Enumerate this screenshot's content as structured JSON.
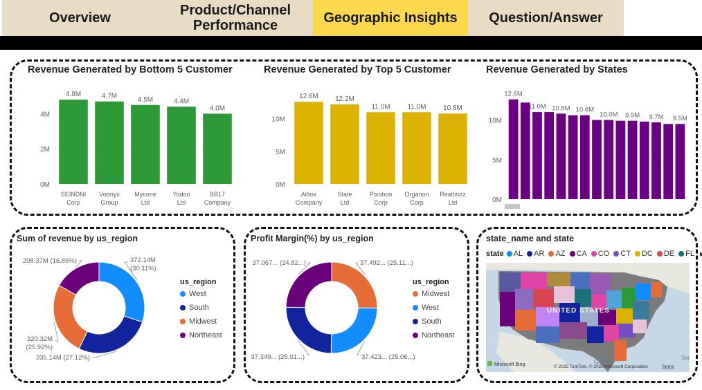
{
  "tabs": [
    {
      "label": "Overview",
      "active": false
    },
    {
      "label": "Product/Channel Performance",
      "active": false
    },
    {
      "label": "Geographic Insights",
      "active": true
    },
    {
      "label": "Question/Answer",
      "active": false
    }
  ],
  "chart_data": [
    {
      "type": "bar",
      "title": "Revenue Generated by Bottom 5 Customer",
      "categories": [
        "SEINDNI Corp",
        "Voonyx Group",
        "Mycone Ltd",
        "Yodoo Ltd",
        "BB17 Company"
      ],
      "values": [
        4.8,
        4.7,
        4.5,
        4.4,
        4.0
      ],
      "data_labels": [
        "4.8M",
        "4.7M",
        "4.5M",
        "4.4M",
        "4.0M"
      ],
      "yticks": [
        "0M",
        "2M",
        "4M"
      ],
      "ylim": [
        0,
        5.2
      ],
      "color": "#2e9a37"
    },
    {
      "type": "bar",
      "title": "Revenue Generated by Top 5 Customer",
      "categories": [
        "Aibox Company",
        "State Ltd",
        "Pixoboo Corp",
        "Organon Corp",
        "Realbuzz Ltd"
      ],
      "values": [
        12.6,
        12.2,
        11.0,
        11.0,
        10.8
      ],
      "data_labels": [
        "12.6M",
        "12.2M",
        "11.0M",
        "11.0M",
        "10.8M"
      ],
      "yticks": [
        "0M",
        "5M",
        "10M"
      ],
      "ylim": [
        0,
        14
      ],
      "color": "#dbb300"
    },
    {
      "type": "bar",
      "title": "Revenue Generated by States",
      "values": [
        12.6,
        12.2,
        11.0,
        11.0,
        10.8,
        10.6,
        10.6,
        10.0,
        10.0,
        9.9,
        9.9,
        9.8,
        9.7,
        9.5,
        9.5
      ],
      "data_labels": [
        "12.6M",
        "",
        "11.0M",
        "",
        "10.8M",
        "",
        "10.6M",
        "",
        "10.0M",
        "",
        "9.9M",
        "",
        "9.7M",
        "",
        "9.5M"
      ],
      "yticks": [
        "0M",
        "5M",
        "10M"
      ],
      "ylim": [
        0,
        13.8
      ],
      "color": "#6b0085"
    },
    {
      "type": "pie",
      "title": "Sum of revenue by us_region",
      "legend_title": "us_region",
      "series": [
        {
          "name": "West",
          "value": 30.11,
          "label": "372.14M\n(30.11%)",
          "color": "#118dff"
        },
        {
          "name": "South",
          "value": 27.12,
          "label": "335.14M (27.12%)",
          "color": "#12239e"
        },
        {
          "name": "Midwest",
          "value": 25.92,
          "label": "320.32M\n(25.92%)",
          "color": "#e66c37"
        },
        {
          "name": "Northeast",
          "value": 16.86,
          "label": "208.37M (16.86%)",
          "color": "#6b007b"
        }
      ]
    },
    {
      "type": "pie",
      "title": "Profit Margin(%) by us_region",
      "legend_title": "us_region",
      "series": [
        {
          "name": "Midwest",
          "value": 25.11,
          "label": "37.492... (25.11...)",
          "color": "#e66c37"
        },
        {
          "name": "West",
          "value": 25.06,
          "label": "37.423... (25.06...)",
          "color": "#118dff"
        },
        {
          "name": "South",
          "value": 25.01,
          "label": "37.349... (25.01...)",
          "color": "#12239e"
        },
        {
          "name": "Northeast",
          "value": 24.82,
          "label": "37.067... (24.82...)",
          "color": "#6b007b"
        }
      ]
    }
  ],
  "map": {
    "title": "state_name and state",
    "legend_label": "state",
    "legend_items": [
      {
        "code": "AL",
        "color": "#118dff"
      },
      {
        "code": "AR",
        "color": "#12239e"
      },
      {
        "code": "AZ",
        "color": "#e66c37"
      },
      {
        "code": "CA",
        "color": "#6b007b"
      },
      {
        "code": "CO",
        "color": "#e044a7"
      },
      {
        "code": "CT",
        "color": "#744ec2"
      },
      {
        "code": "DC",
        "color": "#d9b300"
      },
      {
        "code": "DE",
        "color": "#d64550"
      },
      {
        "code": "FL",
        "color": "#197278"
      }
    ],
    "country_label": "UNITED STATES",
    "gulf_label": "Gulf of",
    "bing": "Microsoft Bing",
    "copyright": "© 2025 TomTom, © 2025 Microsoft Corporation",
    "terms": "Terms",
    "sar": "Sar"
  }
}
